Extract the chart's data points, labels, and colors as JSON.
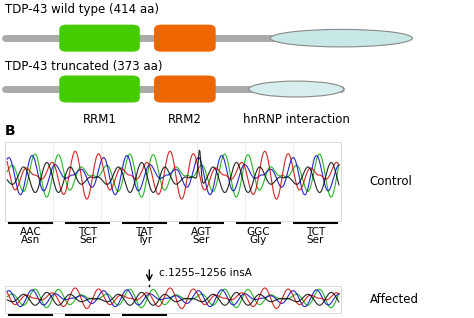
{
  "title": "",
  "background_color": "#ffffff",
  "wild_type_label": "TDP-43 wild type (414 aa)",
  "truncated_label": "TDP-43 truncated (373 aa)",
  "rrm1_label": "RRM1",
  "rrm2_label": "RRM2",
  "hnrnp_label": "hnRNP interaction",
  "label_b": "B",
  "control_label": "Control",
  "affected_label": "Affected",
  "mutation_label": "c.1255–1256 insA",
  "codons": [
    "AAC",
    "TCT",
    "TAT",
    "AGT",
    "GGC",
    "TCT"
  ],
  "amino_acids": [
    "Asn",
    "Ser",
    "Tyr",
    "Ser",
    "Gly",
    "Ser"
  ],
  "green_color": "#44cc00",
  "orange_color": "#ee6600",
  "hnrnp_color_wt": "#c8e8e8",
  "hnrnp_color_trunc": "#d8eeee",
  "font_size_label": 8.5,
  "font_size_small": 7.5
}
